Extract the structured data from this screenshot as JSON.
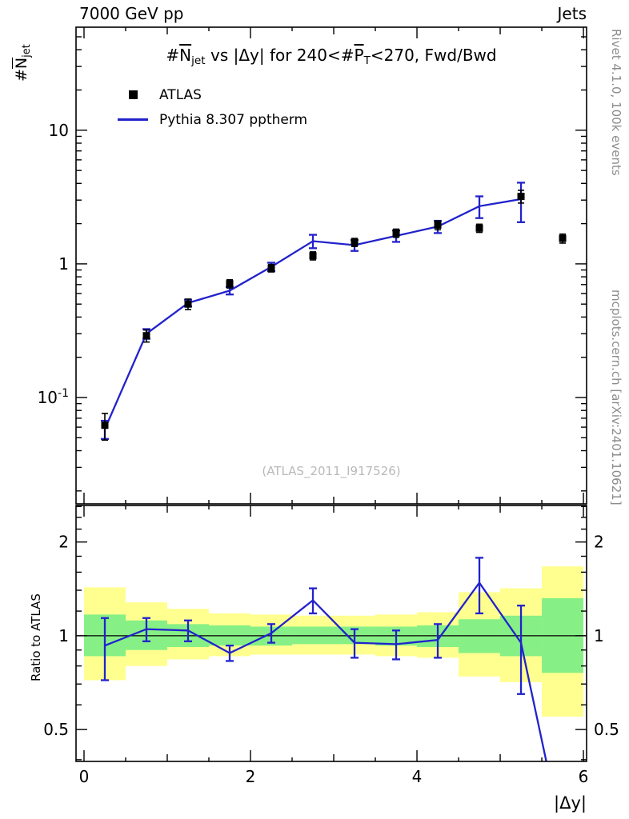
{
  "header": {
    "left": "7000 GeV pp",
    "right": "Jets"
  },
  "title_tokens": [
    {
      "text": "#"
    },
    {
      "text": "N",
      "over": true
    },
    {
      "text": "jet",
      "sub": true
    },
    {
      "text": " vs |Δy| for 240<#"
    },
    {
      "text": "P",
      "over": true
    },
    {
      "text": "T",
      "sub": true
    },
    {
      "text": "<270, Fwd/Bwd"
    }
  ],
  "legend": [
    {
      "label": "ATLAS",
      "marker": "black-square"
    },
    {
      "label": "Pythia 8.307 pptherm",
      "marker": "blue-line"
    }
  ],
  "watermark": "(ATLAS_2011_I917526)",
  "side_notes": {
    "top": "Rivet 4.1.0,  100k events",
    "bottom": "mcplots.cern.ch [arXiv:2401.10621]"
  },
  "colors": {
    "pythia_blue": "#2222cc",
    "atlas_black": "#000000",
    "band_yellow": "#ffff8f",
    "band_green": "#86f086",
    "frame": "#000000",
    "watermark_gray": "#b9b9b9",
    "side_gray": "#8c8c8c"
  },
  "axes": {
    "x": {
      "label_tokens": [
        {
          "text": "|Δy|"
        }
      ],
      "lim": [
        -0.096,
        6.038
      ],
      "ticks": [
        {
          "v": 0,
          "label": "0"
        },
        {
          "v": 2,
          "label": "2"
        },
        {
          "v": 4,
          "label": "4"
        },
        {
          "v": 6,
          "label": "6"
        }
      ]
    },
    "y_top": {
      "label_tokens": [
        {
          "text": "#"
        },
        {
          "text": "N",
          "over": true
        },
        {
          "text": "jet",
          "sub": true
        }
      ],
      "scale": "log",
      "lim": [
        0.016,
        59
      ],
      "ticks": [
        {
          "v": 10,
          "tokens": [
            {
              "text": "10"
            }
          ]
        },
        {
          "v": 1,
          "tokens": [
            {
              "text": "1"
            }
          ]
        },
        {
          "v": 0.1,
          "tokens": [
            {
              "text": "10"
            },
            {
              "text": "-1",
              "sup": true
            }
          ]
        }
      ]
    },
    "y_ratio": {
      "label": "Ratio to ATLAS",
      "scale": "log",
      "lim": [
        0.395,
        2.62
      ],
      "ticks": [
        {
          "v": 2,
          "tokens": [
            {
              "text": "2"
            }
          ]
        },
        {
          "v": 1,
          "tokens": [
            {
              "text": "1"
            }
          ]
        },
        {
          "v": 0.5,
          "tokens": [
            {
              "text": "0.5"
            }
          ]
        }
      ]
    }
  },
  "chart_data": [
    {
      "type": "scatter",
      "panel": "main",
      "title": "#Njet vs |Δy| for 240<#PT<270, Fwd/Bwd",
      "xlabel": "|Δy|",
      "ylabel": "#Njet",
      "yscale": "log",
      "xlim": [
        -0.096,
        6.038
      ],
      "ylim": [
        0.016,
        59
      ],
      "series": [
        {
          "name": "ATLAS",
          "style": "points",
          "color": "#000000",
          "x": [
            0.25,
            0.75,
            1.25,
            1.75,
            2.25,
            2.75,
            3.25,
            3.75,
            4.25,
            4.75,
            5.25,
            5.75
          ],
          "y": [
            0.062,
            0.29,
            0.5,
            0.71,
            0.93,
            1.15,
            1.45,
            1.7,
            1.95,
            1.85,
            3.2,
            1.55
          ],
          "yerr": [
            0.014,
            0.03,
            0.045,
            0.05,
            0.06,
            0.08,
            0.1,
            0.12,
            0.15,
            0.13,
            0.35,
            0.12
          ]
        },
        {
          "name": "Pythia 8.307 pptherm",
          "style": "line",
          "color": "#2222cc",
          "x": [
            0.25,
            0.75,
            1.25,
            1.75,
            2.25,
            2.75,
            3.25,
            3.75,
            4.25,
            4.75,
            5.25
          ],
          "y": [
            0.058,
            0.3,
            0.51,
            0.63,
            0.95,
            1.48,
            1.38,
            1.62,
            1.9,
            2.7,
            3.05
          ],
          "yerr": [
            0.009,
            0.025,
            0.03,
            0.04,
            0.07,
            0.17,
            0.13,
            0.16,
            0.2,
            0.5,
            1.0
          ]
        }
      ]
    },
    {
      "type": "ratio",
      "panel": "ratio",
      "ylabel": "Ratio to ATLAS",
      "yscale": "log",
      "ylim": [
        0.395,
        2.62
      ],
      "reference_y": 1,
      "bands": [
        {
          "x0": 0.0,
          "x1": 0.5,
          "yellow": [
            0.72,
            1.43
          ],
          "green": [
            0.86,
            1.17
          ]
        },
        {
          "x0": 0.5,
          "x1": 1.0,
          "yellow": [
            0.8,
            1.28
          ],
          "green": [
            0.9,
            1.12
          ]
        },
        {
          "x0": 1.0,
          "x1": 1.5,
          "yellow": [
            0.84,
            1.22
          ],
          "green": [
            0.92,
            1.09
          ]
        },
        {
          "x0": 1.5,
          "x1": 2.0,
          "yellow": [
            0.86,
            1.18
          ],
          "green": [
            0.93,
            1.08
          ]
        },
        {
          "x0": 2.0,
          "x1": 2.5,
          "yellow": [
            0.87,
            1.17
          ],
          "green": [
            0.93,
            1.07
          ]
        },
        {
          "x0": 2.5,
          "x1": 3.0,
          "yellow": [
            0.87,
            1.16
          ],
          "green": [
            0.94,
            1.07
          ]
        },
        {
          "x0": 3.0,
          "x1": 3.5,
          "yellow": [
            0.87,
            1.16
          ],
          "green": [
            0.94,
            1.07
          ]
        },
        {
          "x0": 3.5,
          "x1": 4.0,
          "yellow": [
            0.86,
            1.17
          ],
          "green": [
            0.93,
            1.07
          ]
        },
        {
          "x0": 4.0,
          "x1": 4.5,
          "yellow": [
            0.85,
            1.19
          ],
          "green": [
            0.92,
            1.08
          ]
        },
        {
          "x0": 4.5,
          "x1": 5.0,
          "yellow": [
            0.74,
            1.38
          ],
          "green": [
            0.88,
            1.13
          ]
        },
        {
          "x0": 5.0,
          "x1": 5.5,
          "yellow": [
            0.71,
            1.42
          ],
          "green": [
            0.86,
            1.16
          ]
        },
        {
          "x0": 5.5,
          "x1": 6.0,
          "yellow": [
            0.55,
            1.67
          ],
          "green": [
            0.76,
            1.32
          ]
        }
      ],
      "line": {
        "name": "Pythia 8.307 pptherm / ATLAS",
        "color": "#2222cc",
        "x": [
          0.25,
          0.75,
          1.25,
          1.75,
          2.25,
          2.75,
          3.25,
          3.75,
          4.25,
          4.75,
          5.25,
          5.65
        ],
        "y": [
          0.93,
          1.05,
          1.04,
          0.88,
          1.02,
          1.3,
          0.95,
          0.94,
          0.97,
          1.48,
          0.95,
          0.3
        ],
        "yerr": [
          0.21,
          0.09,
          0.08,
          0.05,
          0.07,
          0.12,
          0.1,
          0.1,
          0.12,
          0.3,
          0.3,
          0
        ]
      }
    }
  ]
}
